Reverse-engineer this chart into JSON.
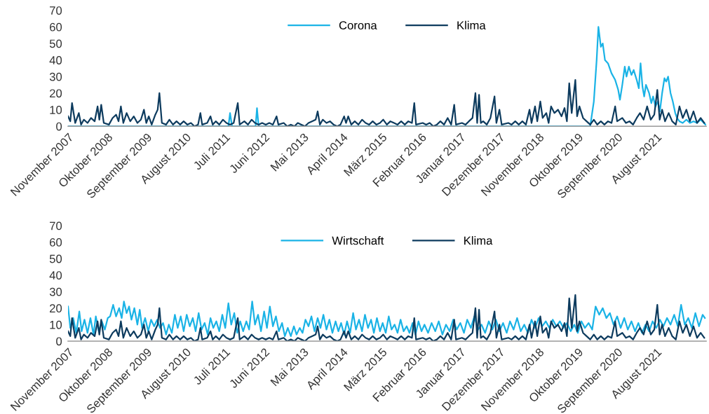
{
  "chart_data": [
    {
      "type": "line",
      "legend": "top",
      "grid": false,
      "xlim": [
        "2007-11-01",
        "2022-10-01"
      ],
      "ylim": [
        0,
        70
      ],
      "yticks": [
        0,
        10,
        20,
        30,
        40,
        50,
        60,
        70
      ],
      "xticks": [
        {
          "value": "2007-11",
          "label": "November 2007"
        },
        {
          "value": "2008-10",
          "label": "Oktober 2008"
        },
        {
          "value": "2009-09",
          "label": "September 2009"
        },
        {
          "value": "2010-08",
          "label": "August 2010"
        },
        {
          "value": "2011-07",
          "label": "Juli 2011"
        },
        {
          "value": "2012-06",
          "label": "Juni 2012"
        },
        {
          "value": "2013-05",
          "label": "Mai 2013"
        },
        {
          "value": "2014-04",
          "label": "April 2014"
        },
        {
          "value": "2015-03",
          "label": "März 2015"
        },
        {
          "value": "2016-02",
          "label": "Februar 2016"
        },
        {
          "value": "2017-01",
          "label": "Januar 2017"
        },
        {
          "value": "2017-12",
          "label": "Dezember 2017"
        },
        {
          "value": "2018-11",
          "label": "November 2018"
        },
        {
          "value": "2019-10",
          "label": "Oktober 2019"
        },
        {
          "value": "2020-09",
          "label": "September 2020"
        },
        {
          "value": "2021-08",
          "label": "August 2021"
        }
      ],
      "series": [
        {
          "name": "Corona",
          "color": "#1ab3e6",
          "x": [
            "2007-11-01",
            "2011-08-01",
            "2011-08-15",
            "2011-09-01",
            "2012-03-20",
            "2012-04-01",
            "2012-04-15",
            "2020-01-15",
            "2020-02-15",
            "2020-03-10",
            "2020-03-25",
            "2020-04-15",
            "2020-05-01",
            "2020-05-20",
            "2020-06-15",
            "2020-07-15",
            "2020-08-15",
            "2020-09-10",
            "2020-09-25",
            "2020-10-15",
            "2020-11-05",
            "2020-11-20",
            "2020-12-10",
            "2021-01-01",
            "2021-01-20",
            "2021-02-15",
            "2021-03-05",
            "2021-03-20",
            "2021-04-05",
            "2021-04-20",
            "2021-05-05",
            "2021-06-01",
            "2021-06-20",
            "2021-07-05",
            "2021-07-25",
            "2021-08-15",
            "2021-09-01",
            "2021-09-20",
            "2021-10-10",
            "2021-10-25",
            "2021-11-10",
            "2021-12-01",
            "2021-12-20",
            "2022-01-10",
            "2022-01-25",
            "2022-02-15",
            "2022-03-15",
            "2022-04-15",
            "2022-05-15",
            "2022-06-15",
            "2022-07-15",
            "2022-08-15",
            "2022-09-25"
          ],
          "values": [
            0,
            0,
            8,
            0,
            0,
            11,
            0,
            0,
            15,
            40,
            60,
            48,
            50,
            40,
            38,
            32,
            28,
            22,
            16,
            25,
            36,
            30,
            36,
            31,
            34,
            28,
            23,
            38,
            24,
            18,
            25,
            20,
            14,
            18,
            12,
            15,
            9,
            20,
            29,
            27,
            30,
            20,
            15,
            8,
            5,
            3,
            2,
            4,
            2,
            3,
            2,
            4,
            1
          ]
        },
        {
          "name": "Klima",
          "color": "#0d3b5e",
          "x": [
            "2007-11-01",
            "2007-11-20",
            "2007-12-05",
            "2008-01-01",
            "2008-02-01",
            "2008-02-20",
            "2008-03-15",
            "2008-04-15",
            "2008-05-15",
            "2008-06-15",
            "2008-07-10",
            "2008-07-25",
            "2008-08-10",
            "2008-09-01",
            "2008-10-15",
            "2008-11-15",
            "2008-12-15",
            "2009-01-05",
            "2009-01-25",
            "2009-02-15",
            "2009-03-15",
            "2009-04-15",
            "2009-05-15",
            "2009-06-15",
            "2009-07-15",
            "2009-08-10",
            "2009-08-30",
            "2009-09-20",
            "2009-10-15",
            "2009-11-15",
            "2009-12-05",
            "2009-12-20",
            "2010-01-10",
            "2010-02-15",
            "2010-03-15",
            "2010-04-15",
            "2010-05-15",
            "2010-06-15",
            "2010-07-15",
            "2010-08-15",
            "2010-09-15",
            "2010-10-15",
            "2010-11-15",
            "2010-12-05",
            "2010-12-20",
            "2011-02-01",
            "2011-03-01",
            "2011-03-20",
            "2011-04-15",
            "2011-05-15",
            "2011-06-15",
            "2011-07-15",
            "2011-08-15",
            "2011-09-15",
            "2011-10-20",
            "2011-11-05",
            "2011-12-15",
            "2012-01-15",
            "2012-02-15",
            "2012-03-15",
            "2012-04-15",
            "2012-05-15",
            "2012-06-15",
            "2012-07-15",
            "2012-08-15",
            "2012-09-15",
            "2012-10-01",
            "2012-11-15",
            "2012-12-15",
            "2013-01-15",
            "2013-02-15",
            "2013-03-15",
            "2013-04-15",
            "2013-05-15",
            "2013-06-15",
            "2013-07-15",
            "2013-08-15",
            "2013-09-01",
            "2013-09-20",
            "2013-10-15",
            "2013-11-15",
            "2013-12-15",
            "2014-01-15",
            "2014-02-15",
            "2014-03-15",
            "2014-04-15",
            "2014-05-01",
            "2014-05-20",
            "2014-06-15",
            "2014-07-15",
            "2014-08-15",
            "2014-09-15",
            "2014-10-15",
            "2014-11-15",
            "2014-12-15",
            "2015-01-15",
            "2015-02-15",
            "2015-03-15",
            "2015-04-15",
            "2015-05-15",
            "2015-06-15",
            "2015-07-15",
            "2015-08-15",
            "2015-09-15",
            "2015-10-15",
            "2015-11-15",
            "2015-12-05",
            "2015-12-20",
            "2016-02-15",
            "2016-03-15",
            "2016-04-15",
            "2016-05-15",
            "2016-06-15",
            "2016-07-15",
            "2016-08-15",
            "2016-09-15",
            "2016-10-15",
            "2016-11-10",
            "2016-11-25",
            "2017-01-15",
            "2017-02-15",
            "2017-03-15",
            "2017-04-15",
            "2017-05-10",
            "2017-05-25",
            "2017-06-10",
            "2017-06-25",
            "2017-07-15",
            "2017-08-15",
            "2017-09-15",
            "2017-10-20",
            "2017-11-05",
            "2017-12-01",
            "2017-12-20",
            "2018-02-15",
            "2018-03-15",
            "2018-04-15",
            "2018-05-15",
            "2018-06-15",
            "2018-07-15",
            "2018-08-15",
            "2018-09-01",
            "2018-10-01",
            "2018-10-20",
            "2018-11-15",
            "2018-12-05",
            "2019-01-05",
            "2019-01-25",
            "2019-02-15",
            "2019-03-15",
            "2019-04-15",
            "2019-05-15",
            "2019-06-10",
            "2019-06-30",
            "2019-07-20",
            "2019-08-10",
            "2019-09-10",
            "2019-09-25",
            "2019-10-15",
            "2019-11-15",
            "2019-12-15",
            "2020-01-15",
            "2020-02-15",
            "2020-03-15",
            "2020-04-15",
            "2020-05-15",
            "2020-06-15",
            "2020-07-15",
            "2020-08-15",
            "2020-09-01",
            "2020-10-15",
            "2020-11-15",
            "2020-12-15",
            "2021-01-15",
            "2021-02-15",
            "2021-03-15",
            "2021-04-15",
            "2021-05-15",
            "2021-06-15",
            "2021-07-15",
            "2021-08-10",
            "2021-08-30",
            "2021-09-20",
            "2021-10-15",
            "2021-11-15",
            "2021-12-15",
            "2022-01-15",
            "2022-02-15",
            "2022-03-15",
            "2022-04-15",
            "2022-05-15",
            "2022-06-15",
            "2022-07-15",
            "2022-08-15",
            "2022-09-15"
          ],
          "values": [
            6,
            3,
            14,
            2,
            8,
            1,
            4,
            2,
            5,
            3,
            12,
            4,
            13,
            2,
            1,
            5,
            7,
            3,
            12,
            2,
            8,
            3,
            6,
            2,
            4,
            10,
            2,
            6,
            1,
            7,
            10,
            20,
            2,
            1,
            4,
            1,
            3,
            1,
            3,
            1,
            2,
            0,
            1,
            8,
            1,
            2,
            6,
            1,
            3,
            1,
            4,
            2,
            1,
            2,
            14,
            1,
            3,
            1,
            4,
            2,
            1,
            2,
            1,
            2,
            1,
            6,
            1,
            2,
            0,
            1,
            0,
            2,
            1,
            0,
            2,
            3,
            4,
            9,
            1,
            4,
            2,
            3,
            1,
            0,
            1,
            6,
            2,
            6,
            1,
            3,
            1,
            4,
            2,
            1,
            3,
            1,
            2,
            4,
            1,
            3,
            2,
            1,
            3,
            1,
            3,
            2,
            14,
            1,
            2,
            1,
            2,
            0,
            1,
            3,
            1,
            5,
            1,
            13,
            1,
            2,
            1,
            3,
            5,
            20,
            2,
            19,
            2,
            3,
            1,
            5,
            18,
            2,
            10,
            1,
            2,
            1,
            3,
            1,
            3,
            1,
            10,
            2,
            12,
            3,
            15,
            5,
            8,
            2,
            12,
            8,
            10,
            6,
            11,
            3,
            26,
            8,
            28,
            6,
            12,
            5,
            3,
            1,
            4,
            1,
            3,
            1,
            3,
            2,
            12,
            3,
            5,
            2,
            3,
            1,
            5,
            8,
            4,
            12,
            4,
            7,
            22,
            4,
            10,
            3,
            8,
            3,
            1,
            12,
            5,
            10,
            3,
            9,
            2,
            5,
            2
          ]
        }
      ]
    },
    {
      "type": "line",
      "legend": "top",
      "grid": false,
      "xlim": [
        "2007-11-01",
        "2022-10-01"
      ],
      "ylim": [
        0,
        70
      ],
      "yticks": [
        0,
        10,
        20,
        30,
        40,
        50,
        60,
        70
      ],
      "xticks": [
        {
          "value": "2007-11",
          "label": "November 2007"
        },
        {
          "value": "2008-10",
          "label": "Oktober 2008"
        },
        {
          "value": "2009-09",
          "label": "September 2009"
        },
        {
          "value": "2010-08",
          "label": "August 2010"
        },
        {
          "value": "2011-07",
          "label": "Juli 2011"
        },
        {
          "value": "2012-06",
          "label": "Juni 2012"
        },
        {
          "value": "2013-05",
          "label": "Mai 2013"
        },
        {
          "value": "2014-04",
          "label": "April 2014"
        },
        {
          "value": "2015-03",
          "label": "März 2015"
        },
        {
          "value": "2016-02",
          "label": "Februar 2016"
        },
        {
          "value": "2017-01",
          "label": "Januar 2017"
        },
        {
          "value": "2017-12",
          "label": "Dezember 2017"
        },
        {
          "value": "2018-11",
          "label": "November 2018"
        },
        {
          "value": "2019-10",
          "label": "Oktober 2019"
        },
        {
          "value": "2020-09",
          "label": "September 2020"
        },
        {
          "value": "2021-08",
          "label": "August 2021"
        }
      ],
      "series": [
        {
          "name": "Wirtschaft",
          "color": "#1ab3e6",
          "x": [
            "2007-11-01",
            "2007-11-20",
            "2007-12-15",
            "2008-01-10",
            "2008-02-05",
            "2008-02-25",
            "2008-03-20",
            "2008-04-15",
            "2008-05-10",
            "2008-06-05",
            "2008-06-25",
            "2008-07-20",
            "2008-08-15",
            "2008-09-10",
            "2008-10-05",
            "2008-10-25",
            "2008-11-20",
            "2008-12-15",
            "2009-01-10",
            "2009-02-01",
            "2009-02-20",
            "2009-03-15",
            "2009-04-05",
            "2009-04-25",
            "2009-05-20",
            "2009-06-15",
            "2009-07-05",
            "2009-07-25",
            "2009-08-20",
            "2009-09-15",
            "2009-10-10",
            "2009-11-05",
            "2009-12-01",
            "2009-12-25",
            "2010-01-20",
            "2010-02-15",
            "2010-03-10",
            "2010-04-05",
            "2010-05-01",
            "2010-05-25",
            "2010-06-20",
            "2010-07-15",
            "2010-08-10",
            "2010-09-05",
            "2010-10-01",
            "2010-10-25",
            "2010-11-20",
            "2010-12-15",
            "2011-01-10",
            "2011-02-05",
            "2011-03-01",
            "2011-03-25",
            "2011-04-20",
            "2011-05-15",
            "2011-06-10",
            "2011-07-05",
            "2011-08-01",
            "2011-08-25",
            "2011-09-20",
            "2011-10-15",
            "2011-11-10",
            "2011-12-05",
            "2012-01-01",
            "2012-01-25",
            "2012-02-20",
            "2012-03-15",
            "2012-04-10",
            "2012-05-05",
            "2012-06-01",
            "2012-06-25",
            "2012-07-20",
            "2012-08-15",
            "2012-09-10",
            "2012-10-05",
            "2012-11-01",
            "2012-11-25",
            "2012-12-20",
            "2013-01-15",
            "2013-02-10",
            "2013-03-05",
            "2013-04-01",
            "2013-04-25",
            "2013-05-20",
            "2013-06-15",
            "2013-07-10",
            "2013-08-05",
            "2013-09-01",
            "2013-09-25",
            "2013-10-20",
            "2013-11-15",
            "2013-12-10",
            "2014-01-05",
            "2014-02-01",
            "2014-02-25",
            "2014-03-20",
            "2014-04-15",
            "2014-05-10",
            "2014-06-05",
            "2014-07-01",
            "2014-07-25",
            "2014-08-20",
            "2014-09-15",
            "2014-10-10",
            "2014-11-05",
            "2014-12-01",
            "2014-12-25",
            "2015-01-20",
            "2015-02-15",
            "2015-03-10",
            "2015-04-05",
            "2015-05-01",
            "2015-05-25",
            "2015-06-20",
            "2015-07-15",
            "2015-08-10",
            "2015-09-05",
            "2015-10-01",
            "2015-10-25",
            "2015-11-20",
            "2015-12-15",
            "2016-01-10",
            "2016-02-05",
            "2016-03-01",
            "2016-04-01",
            "2016-05-01",
            "2016-06-01",
            "2016-07-01",
            "2016-08-01",
            "2016-09-01",
            "2016-10-01",
            "2016-11-01",
            "2016-12-01",
            "2017-01-01",
            "2017-02-01",
            "2017-03-01",
            "2017-04-01",
            "2017-05-01",
            "2017-06-01",
            "2017-07-01",
            "2017-08-01",
            "2017-09-01",
            "2017-10-01",
            "2017-11-01",
            "2017-12-01",
            "2018-01-01",
            "2018-02-01",
            "2018-03-01",
            "2018-04-01",
            "2018-05-01",
            "2018-06-01",
            "2018-07-01",
            "2018-08-01",
            "2018-09-01",
            "2018-10-01",
            "2018-11-01",
            "2018-12-01",
            "2019-01-01",
            "2019-02-01",
            "2019-03-01",
            "2019-04-01",
            "2019-05-01",
            "2019-06-01",
            "2019-07-01",
            "2019-08-01",
            "2019-09-01",
            "2019-10-01",
            "2019-11-01",
            "2019-12-01",
            "2020-01-01",
            "2020-02-01",
            "2020-03-01",
            "2020-04-01",
            "2020-05-01",
            "2020-06-01",
            "2020-07-01",
            "2020-08-01",
            "2020-09-01",
            "2020-10-01",
            "2020-11-01",
            "2020-12-01",
            "2021-01-01",
            "2021-02-01",
            "2021-03-01",
            "2021-04-01",
            "2021-05-01",
            "2021-06-01",
            "2021-07-01",
            "2021-08-01",
            "2021-09-01",
            "2021-10-01",
            "2021-11-01",
            "2021-12-01",
            "2022-01-01",
            "2022-02-01",
            "2022-03-01",
            "2022-04-01",
            "2022-05-01",
            "2022-06-01",
            "2022-07-01",
            "2022-08-01",
            "2022-09-01",
            "2022-09-20"
          ],
          "values": [
            21,
            8,
            14,
            5,
            18,
            6,
            13,
            5,
            14,
            4,
            15,
            6,
            12,
            7,
            14,
            15,
            22,
            15,
            20,
            14,
            24,
            17,
            21,
            13,
            20,
            10,
            19,
            8,
            14,
            6,
            13,
            9,
            13,
            8,
            11,
            4,
            10,
            5,
            16,
            8,
            15,
            6,
            16,
            9,
            14,
            6,
            17,
            7,
            11,
            4,
            14,
            8,
            12,
            6,
            16,
            8,
            23,
            10,
            17,
            5,
            12,
            6,
            12,
            7,
            24,
            10,
            16,
            6,
            18,
            8,
            21,
            9,
            15,
            6,
            11,
            3,
            8,
            3,
            9,
            4,
            8,
            5,
            13,
            9,
            15,
            6,
            14,
            8,
            16,
            7,
            13,
            5,
            12,
            6,
            11,
            4,
            12,
            5,
            17,
            7,
            13,
            6,
            16,
            8,
            13,
            5,
            14,
            6,
            11,
            5,
            15,
            7,
            10,
            5,
            13,
            6,
            9,
            5,
            11,
            4,
            12,
            6,
            10,
            5,
            11,
            6,
            12,
            4,
            10,
            6,
            13,
            7,
            11,
            5,
            13,
            8,
            15,
            7,
            10,
            5,
            12,
            7,
            13,
            6,
            11,
            5,
            12,
            7,
            14,
            6,
            10,
            5,
            13,
            8,
            14,
            9,
            12,
            8,
            13,
            9,
            12,
            8,
            11,
            6,
            10,
            5,
            12,
            8,
            11,
            7,
            21,
            16,
            20,
            14,
            17,
            10,
            15,
            8,
            14,
            7,
            12,
            6,
            11,
            5,
            10,
            6,
            12,
            8,
            13,
            9,
            14,
            10,
            16,
            9,
            22,
            10,
            14,
            8,
            17,
            9,
            16,
            14
          ]
        },
        {
          "name": "Klima",
          "color": "#0d3b5e",
          "x": [
            "2007-11-01",
            "2007-11-20",
            "2007-12-05",
            "2008-01-01",
            "2008-02-01",
            "2008-02-20",
            "2008-03-15",
            "2008-04-15",
            "2008-05-15",
            "2008-06-15",
            "2008-07-10",
            "2008-07-25",
            "2008-08-10",
            "2008-09-01",
            "2008-10-15",
            "2008-11-15",
            "2008-12-15",
            "2009-01-05",
            "2009-01-25",
            "2009-02-15",
            "2009-03-15",
            "2009-04-15",
            "2009-05-15",
            "2009-06-15",
            "2009-07-15",
            "2009-08-10",
            "2009-08-30",
            "2009-09-20",
            "2009-10-15",
            "2009-11-15",
            "2009-12-05",
            "2009-12-20",
            "2010-01-10",
            "2010-02-15",
            "2010-03-15",
            "2010-04-15",
            "2010-05-15",
            "2010-06-15",
            "2010-07-15",
            "2010-08-15",
            "2010-09-15",
            "2010-10-15",
            "2010-11-15",
            "2010-12-05",
            "2010-12-20",
            "2011-02-01",
            "2011-03-01",
            "2011-03-20",
            "2011-04-15",
            "2011-05-15",
            "2011-06-15",
            "2011-07-15",
            "2011-08-15",
            "2011-09-15",
            "2011-10-20",
            "2011-11-05",
            "2011-12-15",
            "2012-01-15",
            "2012-02-15",
            "2012-03-15",
            "2012-04-15",
            "2012-05-15",
            "2012-06-15",
            "2012-07-15",
            "2012-08-15",
            "2012-09-15",
            "2012-10-01",
            "2012-11-15",
            "2012-12-15",
            "2013-01-15",
            "2013-02-15",
            "2013-03-15",
            "2013-04-15",
            "2013-05-15",
            "2013-06-15",
            "2013-07-15",
            "2013-08-15",
            "2013-09-01",
            "2013-09-20",
            "2013-10-15",
            "2013-11-15",
            "2013-12-15",
            "2014-01-15",
            "2014-02-15",
            "2014-03-15",
            "2014-04-15",
            "2014-05-01",
            "2014-05-20",
            "2014-06-15",
            "2014-07-15",
            "2014-08-15",
            "2014-09-15",
            "2014-10-15",
            "2014-11-15",
            "2014-12-15",
            "2015-01-15",
            "2015-02-15",
            "2015-03-15",
            "2015-04-15",
            "2015-05-15",
            "2015-06-15",
            "2015-07-15",
            "2015-08-15",
            "2015-09-15",
            "2015-10-15",
            "2015-11-15",
            "2015-12-05",
            "2015-12-20",
            "2016-02-15",
            "2016-03-15",
            "2016-04-15",
            "2016-05-15",
            "2016-06-15",
            "2016-07-15",
            "2016-08-15",
            "2016-09-15",
            "2016-10-15",
            "2016-11-10",
            "2016-11-25",
            "2017-01-15",
            "2017-02-15",
            "2017-03-15",
            "2017-04-15",
            "2017-05-10",
            "2017-05-25",
            "2017-06-10",
            "2017-06-25",
            "2017-07-15",
            "2017-08-15",
            "2017-09-15",
            "2017-10-20",
            "2017-11-05",
            "2017-12-01",
            "2017-12-20",
            "2018-02-15",
            "2018-03-15",
            "2018-04-15",
            "2018-05-15",
            "2018-06-15",
            "2018-07-15",
            "2018-08-15",
            "2018-09-01",
            "2018-10-01",
            "2018-10-20",
            "2018-11-15",
            "2018-12-05",
            "2019-01-05",
            "2019-01-25",
            "2019-02-15",
            "2019-03-15",
            "2019-04-15",
            "2019-05-15",
            "2019-06-10",
            "2019-06-30",
            "2019-07-20",
            "2019-08-10",
            "2019-09-10",
            "2019-09-25",
            "2019-10-15",
            "2019-11-15",
            "2019-12-15",
            "2020-01-15",
            "2020-02-15",
            "2020-03-15",
            "2020-04-15",
            "2020-05-15",
            "2020-06-15",
            "2020-07-15",
            "2020-08-15",
            "2020-09-01",
            "2020-10-15",
            "2020-11-15",
            "2020-12-15",
            "2021-01-15",
            "2021-02-15",
            "2021-03-15",
            "2021-04-15",
            "2021-05-15",
            "2021-06-15",
            "2021-07-15",
            "2021-08-10",
            "2021-08-30",
            "2021-09-20",
            "2021-10-15",
            "2021-11-15",
            "2021-12-15",
            "2022-01-15",
            "2022-02-15",
            "2022-03-15",
            "2022-04-15",
            "2022-05-15",
            "2022-06-15",
            "2022-07-15",
            "2022-08-15",
            "2022-09-15"
          ],
          "values": [
            6,
            3,
            14,
            2,
            8,
            1,
            4,
            2,
            5,
            3,
            12,
            4,
            13,
            2,
            1,
            5,
            7,
            3,
            12,
            2,
            8,
            3,
            6,
            2,
            4,
            10,
            2,
            6,
            1,
            7,
            10,
            20,
            2,
            1,
            4,
            1,
            3,
            1,
            3,
            1,
            2,
            0,
            1,
            8,
            1,
            2,
            6,
            1,
            3,
            1,
            4,
            2,
            1,
            2,
            14,
            1,
            3,
            1,
            4,
            2,
            1,
            2,
            1,
            2,
            1,
            6,
            1,
            2,
            0,
            1,
            0,
            2,
            1,
            0,
            2,
            3,
            4,
            9,
            1,
            4,
            2,
            3,
            1,
            0,
            1,
            6,
            2,
            6,
            1,
            3,
            1,
            4,
            2,
            1,
            3,
            1,
            2,
            4,
            1,
            3,
            2,
            1,
            3,
            1,
            3,
            2,
            14,
            1,
            2,
            1,
            2,
            0,
            1,
            3,
            1,
            5,
            1,
            13,
            1,
            2,
            1,
            3,
            5,
            20,
            2,
            19,
            2,
            3,
            1,
            5,
            18,
            2,
            10,
            1,
            2,
            1,
            3,
            1,
            3,
            1,
            10,
            2,
            12,
            3,
            15,
            5,
            8,
            2,
            12,
            8,
            10,
            6,
            11,
            3,
            26,
            8,
            28,
            6,
            12,
            5,
            3,
            1,
            4,
            1,
            3,
            1,
            3,
            2,
            12,
            3,
            5,
            2,
            3,
            1,
            5,
            8,
            4,
            12,
            4,
            7,
            22,
            4,
            10,
            3,
            8,
            3,
            1,
            12,
            5,
            10,
            3,
            9,
            2,
            5,
            2
          ]
        }
      ]
    }
  ]
}
